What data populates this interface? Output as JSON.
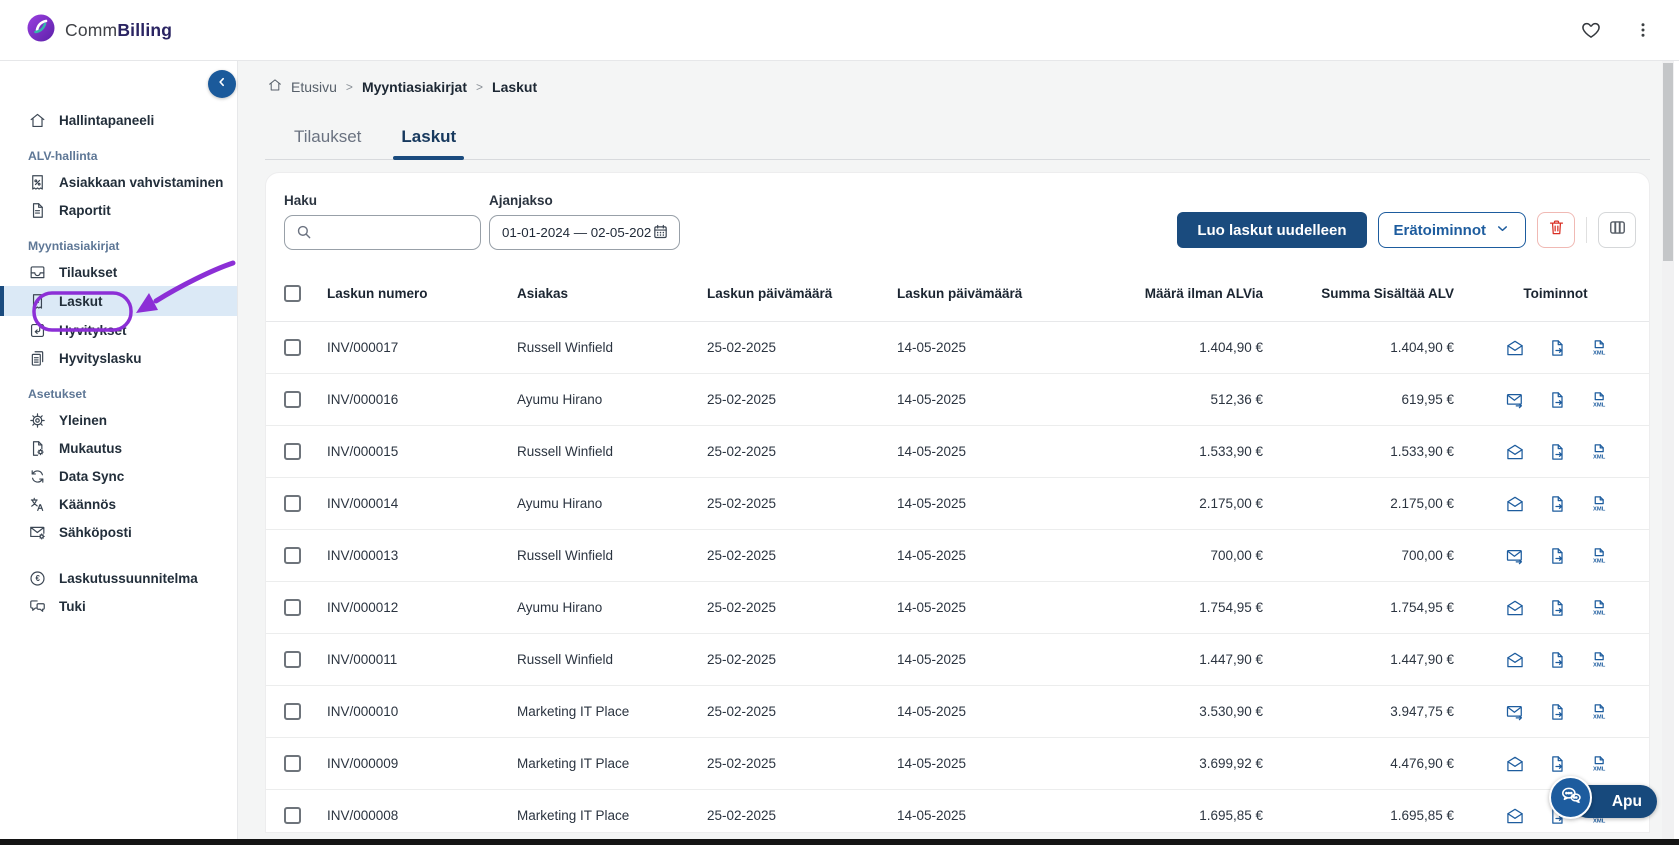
{
  "topbar": {
    "brand_prefix": "Comm",
    "brand_suffix": "Billing",
    "icons": [
      "heart-icon",
      "kebab-menu-icon"
    ]
  },
  "sidebar": {
    "collapse_icon": "chevron-left-icon",
    "sections": [
      {
        "header": "",
        "items": [
          {
            "label": "Hallintapaneeli",
            "icon": "home-icon"
          }
        ]
      },
      {
        "header": "ALV-hallinta",
        "items": [
          {
            "label": "Asiakkaan vahvistaminen",
            "icon": "receipt-percent-icon"
          },
          {
            "label": "Raportit",
            "icon": "document-icon"
          }
        ]
      },
      {
        "header": "Myyntiasiakirjat",
        "items": [
          {
            "label": "Tilaukset",
            "icon": "tray-icon"
          },
          {
            "label": "Laskut",
            "icon": "receipt-euro-icon",
            "selected": true,
            "annotated": true
          },
          {
            "label": "Hyvitykset",
            "icon": "return-icon"
          },
          {
            "label": "Hyvityslasku",
            "icon": "copy-document-icon"
          }
        ]
      },
      {
        "header": "Asetukset",
        "items": [
          {
            "label": "Yleinen",
            "icon": "gear-icon"
          },
          {
            "label": "Mukautus",
            "icon": "document-gear-icon"
          },
          {
            "label": "Data Sync",
            "icon": "sync-icon"
          },
          {
            "label": "Käännös",
            "icon": "translate-icon"
          },
          {
            "label": "Sähköposti",
            "icon": "mail-gear-icon"
          }
        ]
      },
      {
        "header": "",
        "items": [
          {
            "label": "Laskutussuunnitelma",
            "icon": "euro-circle-icon"
          },
          {
            "label": "Tuki",
            "icon": "chat-icon"
          }
        ]
      }
    ]
  },
  "breadcrumb": {
    "home_icon": "home-icon",
    "items": [
      {
        "label": "Etusivu",
        "bold": false
      },
      {
        "label": "Myyntiasiakirjat",
        "bold": true
      },
      {
        "label": "Laskut",
        "bold": true
      }
    ]
  },
  "tabs": [
    {
      "label": "Tilaukset",
      "active": false
    },
    {
      "label": "Laskut",
      "active": true
    }
  ],
  "filters": {
    "search_label": "Haku",
    "search_value": "",
    "search_icon": "search-icon",
    "date_label": "Ajanjakso",
    "date_value": "01-01-2024 — 02-05-202",
    "date_icon": "calendar-icon"
  },
  "toolbar": {
    "recreate_label": "Luo laskut uudelleen",
    "batch_label": "Erätoiminnot",
    "batch_icon": "chevron-down-icon",
    "delete_icon": "trash-icon",
    "columns_icon": "columns-icon"
  },
  "table": {
    "columns": [
      "Laskun numero",
      "Asiakas",
      "Laskun päivämäärä",
      "Laskun päivämäärä",
      "Määrä ilman ALVia",
      "Summa Sisältää ALV",
      "Toiminnot"
    ],
    "action_icons": [
      "export-document-icon",
      "xml-file-icon"
    ],
    "rows": [
      {
        "number": "INV/000017",
        "customer": "Russell Winfield",
        "invoice_date": "25-02-2025",
        "due_date": "14-05-2025",
        "net": "1.404,90 €",
        "gross": "1.404,90 €",
        "mail_icon": "mail-open-icon"
      },
      {
        "number": "INV/000016",
        "customer": "Ayumu Hirano",
        "invoice_date": "25-02-2025",
        "due_date": "14-05-2025",
        "net": "512,36 €",
        "gross": "619,95 €",
        "mail_icon": "mail-sent-icon"
      },
      {
        "number": "INV/000015",
        "customer": "Russell Winfield",
        "invoice_date": "25-02-2025",
        "due_date": "14-05-2025",
        "net": "1.533,90 €",
        "gross": "1.533,90 €",
        "mail_icon": "mail-open-icon"
      },
      {
        "number": "INV/000014",
        "customer": "Ayumu Hirano",
        "invoice_date": "25-02-2025",
        "due_date": "14-05-2025",
        "net": "2.175,00 €",
        "gross": "2.175,00 €",
        "mail_icon": "mail-open-icon"
      },
      {
        "number": "INV/000013",
        "customer": "Russell Winfield",
        "invoice_date": "25-02-2025",
        "due_date": "14-05-2025",
        "net": "700,00 €",
        "gross": "700,00 €",
        "mail_icon": "mail-sent-icon"
      },
      {
        "number": "INV/000012",
        "customer": "Ayumu Hirano",
        "invoice_date": "25-02-2025",
        "due_date": "14-05-2025",
        "net": "1.754,95 €",
        "gross": "1.754,95 €",
        "mail_icon": "mail-open-icon"
      },
      {
        "number": "INV/000011",
        "customer": "Russell Winfield",
        "invoice_date": "25-02-2025",
        "due_date": "14-05-2025",
        "net": "1.447,90 €",
        "gross": "1.447,90 €",
        "mail_icon": "mail-open-icon"
      },
      {
        "number": "INV/000010",
        "customer": "Marketing IT Place",
        "invoice_date": "25-02-2025",
        "due_date": "14-05-2025",
        "net": "3.530,90 €",
        "gross": "3.947,75 €",
        "mail_icon": "mail-sent-icon"
      },
      {
        "number": "INV/000009",
        "customer": "Marketing IT Place",
        "invoice_date": "25-02-2025",
        "due_date": "14-05-2025",
        "net": "3.699,92 €",
        "gross": "4.476,90 €",
        "mail_icon": "mail-open-icon"
      },
      {
        "number": "INV/000008",
        "customer": "Marketing IT Place",
        "invoice_date": "25-02-2025",
        "due_date": "14-05-2025",
        "net": "1.695,85 €",
        "gross": "1.695,85 €",
        "mail_icon": "mail-open-icon"
      }
    ]
  },
  "help": {
    "label": "Apu",
    "icon": "chat-bubbles-icon"
  },
  "colors": {
    "primary_blue": "#1a4b7e",
    "accent_blue": "#1d5c9e",
    "annotation_purple": "#8c2fd6",
    "danger_red": "#d93025",
    "selected_item_bg": "#dbe9f6",
    "brand_navy": "#2a2462"
  }
}
